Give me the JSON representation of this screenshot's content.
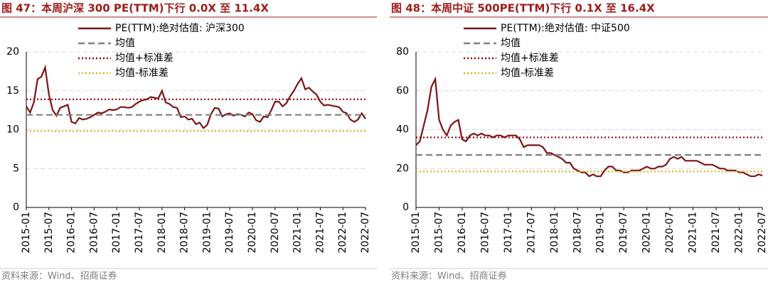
{
  "chart_data": [
    {
      "type": "line",
      "title": "图 47：本周沪深 300 PE(TTM)下行 0.0X 至 11.4X",
      "source": "资料来源：Wind、招商证券",
      "categories": [
        "2015-01",
        null,
        null,
        null,
        null,
        null,
        "2015-07",
        null,
        null,
        null,
        null,
        null,
        "2016-01",
        null,
        null,
        null,
        null,
        null,
        "2016-07",
        null,
        null,
        null,
        null,
        null,
        "2017-01",
        null,
        null,
        null,
        null,
        null,
        "2017-07",
        null,
        null,
        null,
        null,
        null,
        "2018-01",
        null,
        null,
        null,
        null,
        null,
        "2018-07",
        null,
        null,
        null,
        null,
        null,
        "2019-01",
        null,
        null,
        null,
        null,
        null,
        "2019-07",
        null,
        null,
        null,
        null,
        null,
        "2020-01",
        null,
        null,
        null,
        null,
        null,
        "2020-07",
        null,
        null,
        null,
        null,
        null,
        "2021-01",
        null,
        null,
        null,
        null,
        null,
        "2021-07",
        null,
        null,
        null,
        null,
        null,
        "2022-01",
        null,
        null,
        null,
        null,
        null,
        "2022-07"
      ],
      "ylim": [
        0,
        20
      ],
      "yticks": [
        0,
        5,
        10,
        15,
        20
      ],
      "grid": true,
      "series": [
        {
          "name": "PE(TTM):绝对估值: 沪深300",
          "color": "#7b1416",
          "values": [
            13.0,
            12.2,
            13.5,
            16.5,
            16.8,
            18.0,
            14.5,
            12.5,
            11.8,
            12.8,
            13.0,
            13.2,
            11.0,
            10.8,
            11.5,
            11.3,
            11.4,
            11.6,
            11.9,
            12.2,
            12.1,
            12.3,
            12.6,
            12.5,
            12.6,
            12.9,
            12.9,
            12.8,
            12.9,
            13.3,
            13.6,
            13.8,
            13.9,
            14.2,
            14.1,
            14.0,
            15.0,
            13.5,
            13.3,
            12.9,
            12.8,
            11.6,
            11.7,
            11.3,
            11.4,
            10.7,
            10.9,
            10.2,
            10.6,
            12.0,
            12.8,
            12.7,
            11.7,
            12.0,
            12.1,
            11.8,
            12.0,
            11.9,
            11.7,
            12.2,
            12.0,
            11.2,
            11.0,
            11.7,
            11.6,
            12.5,
            13.6,
            13.6,
            13.0,
            13.4,
            14.3,
            15.0,
            15.9,
            16.6,
            15.2,
            15.4,
            14.9,
            14.5,
            13.6,
            13.1,
            13.2,
            13.1,
            13.0,
            12.9,
            12.3,
            12.1,
            11.3,
            11.0,
            11.3,
            12.1,
            11.4
          ]
        },
        {
          "name": "均值",
          "color": "#808080",
          "style": "dashed",
          "value": 11.9
        },
        {
          "name": "均值+标准差",
          "color": "#a00000",
          "style": "dotted",
          "value": 13.9
        },
        {
          "name": "均值-标准差",
          "color": "#e0b020",
          "style": "dotted",
          "value": 9.8
        }
      ]
    },
    {
      "type": "line",
      "title": "图 48：本周中证 500PE(TTM)下行 0.1X 至 16.4X",
      "source": "资料来源：Wind、招商证券",
      "categories": [
        "2015-01",
        null,
        null,
        null,
        null,
        null,
        "2015-07",
        null,
        null,
        null,
        null,
        null,
        "2016-01",
        null,
        null,
        null,
        null,
        null,
        "2016-07",
        null,
        null,
        null,
        null,
        null,
        "2017-01",
        null,
        null,
        null,
        null,
        null,
        "2017-07",
        null,
        null,
        null,
        null,
        null,
        "2018-01",
        null,
        null,
        null,
        null,
        null,
        "2018-07",
        null,
        null,
        null,
        null,
        null,
        "2019-01",
        null,
        null,
        null,
        null,
        null,
        "2019-07",
        null,
        null,
        null,
        null,
        null,
        "2020-01",
        null,
        null,
        null,
        null,
        null,
        "2020-07",
        null,
        null,
        null,
        null,
        null,
        "2021-01",
        null,
        null,
        null,
        null,
        null,
        "2021-07",
        null,
        null,
        null,
        null,
        null,
        "2022-01",
        null,
        null,
        null,
        null,
        null,
        "2022-07"
      ],
      "ylim": [
        0,
        80
      ],
      "yticks": [
        0,
        20,
        40,
        60,
        80
      ],
      "grid": true,
      "series": [
        {
          "name": "PE(TTM):绝对估值: 中证500",
          "color": "#7b1416",
          "values": [
            32,
            34,
            42,
            50,
            62,
            66,
            45,
            40,
            37,
            42,
            44,
            45,
            35,
            34,
            37,
            38,
            37,
            38,
            37,
            37,
            36,
            37,
            37,
            36,
            37,
            37,
            37,
            35,
            31,
            32,
            32,
            32,
            32,
            31,
            28,
            28,
            27,
            26,
            25,
            23,
            23,
            20,
            19,
            18,
            18,
            16,
            17,
            16,
            16,
            19,
            21,
            21,
            19,
            19,
            18,
            18,
            19,
            19,
            19,
            20,
            21,
            20,
            20,
            21,
            21,
            22,
            25,
            26,
            25,
            26,
            24,
            24,
            24,
            24,
            23,
            22,
            22,
            22,
            21,
            20,
            20,
            19,
            19,
            19,
            18,
            18,
            17,
            16,
            16,
            17,
            16.4
          ]
        },
        {
          "name": "均值",
          "color": "#808080",
          "style": "dashed",
          "value": 27
        },
        {
          "name": "均值+标准差",
          "color": "#a00000",
          "style": "dotted",
          "value": 36
        },
        {
          "name": "均值-标准差",
          "color": "#e0b020",
          "style": "dotted",
          "value": 18.5
        }
      ]
    }
  ]
}
